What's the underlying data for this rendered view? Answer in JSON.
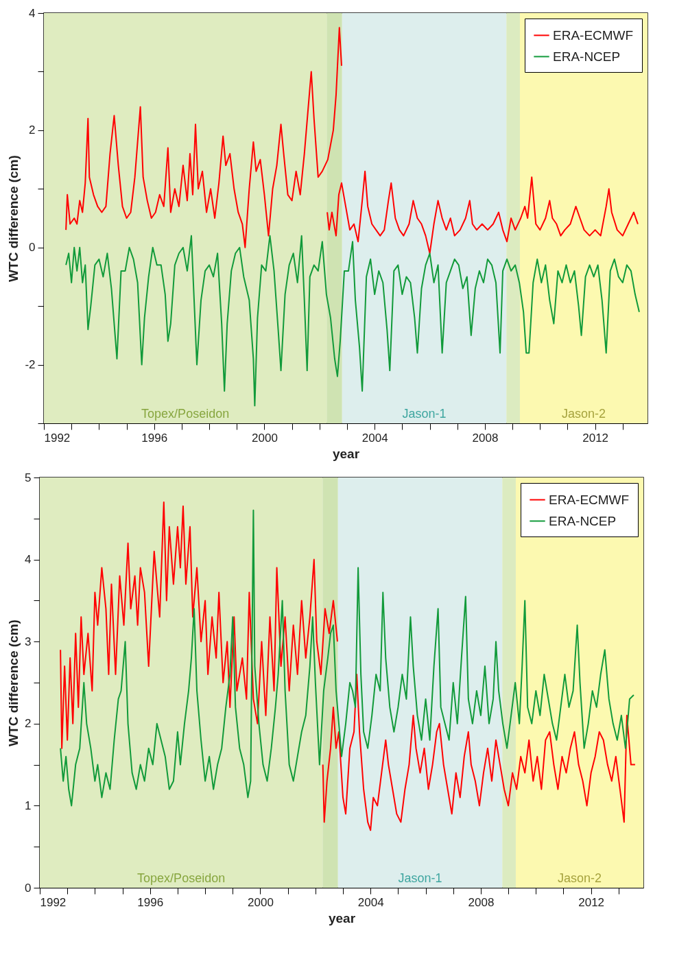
{
  "chart_data": [
    {
      "type": "line",
      "xlabel": "year",
      "ylabel": "WTC difference (cm)",
      "legend": "top right",
      "xlim": [
        1992,
        2013.9
      ],
      "xticks": [
        1992,
        {
          "value": 1993,
          "label": null
        },
        {
          "value": 1994,
          "label": null
        },
        {
          "value": 1995,
          "label": null
        },
        1996,
        {
          "value": 1997,
          "label": null
        },
        {
          "value": 1998,
          "label": null
        },
        {
          "value": 1999,
          "label": null
        },
        2000,
        {
          "value": 2001,
          "label": null
        },
        {
          "value": 2002,
          "label": null
        },
        {
          "value": 2003,
          "label": null
        },
        2004,
        {
          "value": 2005,
          "label": null
        },
        {
          "value": 2006,
          "label": null
        },
        {
          "value": 2007,
          "label": null
        },
        2008,
        {
          "value": 2009,
          "label": null
        },
        {
          "value": 2010,
          "label": null
        },
        {
          "value": 2011,
          "label": null
        },
        2012,
        {
          "value": 2013,
          "label": null
        }
      ],
      "ylim": [
        -3,
        4
      ],
      "yticks": [
        {
          "value": -3,
          "label": null
        },
        -2,
        {
          "value": -1,
          "label": null
        },
        0,
        {
          "value": 1,
          "label": null
        },
        2,
        {
          "value": 3,
          "label": null
        },
        4
      ],
      "bands": [
        {
          "axis": "x",
          "from": 1992,
          "to": 2002.26,
          "label": "Topex/Poseidon",
          "color": "#dfecc0"
        },
        {
          "axis": "x",
          "from": 2002.26,
          "to": 2002.82,
          "color": "#cfe3b2"
        },
        {
          "axis": "x",
          "from": 2002.82,
          "to": 2008.78,
          "label": "Jason-1",
          "color": "#ddeeed"
        },
        {
          "axis": "x",
          "from": 2008.78,
          "to": 2009.27,
          "color": "#dcebc0"
        },
        {
          "axis": "x",
          "from": 2009.27,
          "to": 2013.9,
          "label": "Jason-2",
          "color": "#fcf9b0"
        }
      ],
      "series": [
        {
          "name": "ERA-ECMWF",
          "color": "#ff0000",
          "x": [
            1992.8,
            1992.85,
            1992.95,
            1993.1,
            1993.2,
            1993.3,
            1993.4,
            1993.5,
            1993.6,
            1993.65,
            1993.8,
            1993.95,
            1994.1,
            1994.25,
            1994.4,
            1994.55,
            1994.7,
            1994.85,
            1995.0,
            1995.15,
            1995.3,
            1995.5,
            1995.6,
            1995.75,
            1995.9,
            1996.05,
            1996.2,
            1996.35,
            1996.5,
            1996.6,
            1996.75,
            1996.9,
            1997.05,
            1997.2,
            1997.3,
            1997.4,
            1997.5,
            1997.6,
            1997.75,
            1997.9,
            1998.05,
            1998.2,
            1998.35,
            1998.5,
            1998.6,
            1998.75,
            1998.9,
            1999.05,
            1999.2,
            1999.3,
            1999.45,
            1999.6,
            1999.7,
            1999.85,
            2000.0,
            2000.15,
            2000.3,
            2000.45,
            2000.6,
            2000.7,
            2000.85,
            2001.0,
            2001.15,
            2001.3,
            2001.45,
            2001.7,
            2001.8,
            2001.95,
            2002.1,
            2002.3,
            2002.5,
            2002.6,
            2002.72,
            2002.8
          ],
          "values": [
            0.3,
            0.9,
            0.4,
            0.5,
            0.4,
            0.8,
            0.6,
            1.1,
            2.2,
            1.2,
            0.9,
            0.7,
            0.6,
            0.7,
            1.6,
            2.25,
            1.4,
            0.7,
            0.5,
            0.6,
            1.2,
            2.4,
            1.2,
            0.8,
            0.5,
            0.6,
            0.9,
            0.7,
            1.7,
            0.6,
            1.0,
            0.7,
            1.4,
            0.8,
            1.6,
            0.9,
            2.1,
            1.0,
            1.3,
            0.6,
            1.0,
            0.5,
            1.1,
            1.9,
            1.4,
            1.6,
            1.0,
            0.6,
            0.4,
            0.0,
            1.0,
            1.8,
            1.3,
            1.5,
            0.9,
            0.2,
            1.0,
            1.4,
            2.1,
            1.6,
            0.9,
            0.8,
            1.3,
            0.9,
            1.6,
            3.0,
            2.2,
            1.2,
            1.3,
            1.5,
            2.0,
            2.6,
            3.75,
            3.1
          ]
        },
        {
          "color": "#ff0000",
          "x": [
            2002.28,
            2002.35,
            2002.45,
            2002.6,
            2002.7,
            2002.8,
            2002.95,
            2003.1,
            2003.25,
            2003.4,
            2003.55,
            2003.65,
            2003.75,
            2003.9,
            2004.05,
            2004.2,
            2004.35,
            2004.5,
            2004.6,
            2004.75,
            2004.9,
            2005.05,
            2005.25,
            2005.4,
            2005.55,
            2005.7,
            2005.85,
            2006.0,
            2006.15,
            2006.3,
            2006.45,
            2006.6,
            2006.75,
            2006.9,
            2007.1,
            2007.3,
            2007.45,
            2007.55,
            2007.7,
            2007.9,
            2008.1,
            2008.3,
            2008.5,
            2008.65,
            2008.8,
            2008.95,
            2009.1,
            2009.3,
            2009.45,
            2009.55,
            2009.7,
            2009.85,
            2010.0,
            2010.2,
            2010.35,
            2010.45,
            2010.6,
            2010.75,
            2010.9,
            2011.1,
            2011.3,
            2011.45,
            2011.6,
            2011.8,
            2012.0,
            2012.2,
            2012.4,
            2012.5,
            2012.6,
            2012.8,
            2013.0,
            2013.2,
            2013.4,
            2013.55
          ],
          "values": [
            0.6,
            0.3,
            0.6,
            0.2,
            0.9,
            1.1,
            0.7,
            0.3,
            0.4,
            0.1,
            0.8,
            1.3,
            0.7,
            0.4,
            0.3,
            0.2,
            0.3,
            0.8,
            1.1,
            0.5,
            0.3,
            0.2,
            0.4,
            0.8,
            0.5,
            0.4,
            0.2,
            -0.1,
            0.4,
            0.8,
            0.5,
            0.3,
            0.5,
            0.2,
            0.3,
            0.5,
            0.8,
            0.4,
            0.3,
            0.4,
            0.3,
            0.4,
            0.6,
            0.3,
            0.1,
            0.5,
            0.3,
            0.5,
            0.7,
            0.5,
            1.2,
            0.4,
            0.3,
            0.5,
            0.8,
            0.5,
            0.4,
            0.2,
            0.3,
            0.4,
            0.7,
            0.5,
            0.3,
            0.2,
            0.3,
            0.2,
            0.7,
            1.0,
            0.6,
            0.3,
            0.2,
            0.4,
            0.6,
            0.4
          ]
        },
        {
          "name": "ERA-NCEP",
          "color": "#119a3a",
          "x": [
            1992.8,
            1992.9,
            1993.0,
            1993.1,
            1993.2,
            1993.3,
            1993.4,
            1993.5,
            1993.6,
            1993.7,
            1993.85,
            1994.0,
            1994.15,
            1994.3,
            1994.45,
            1994.6,
            1994.65,
            1994.8,
            1994.95,
            1995.1,
            1995.25,
            1995.4,
            1995.55,
            1995.65,
            1995.8,
            1995.95,
            1996.1,
            1996.25,
            1996.4,
            1996.5,
            1996.6,
            1996.75,
            1996.9,
            1997.05,
            1997.2,
            1997.35,
            1997.45,
            1997.55,
            1997.7,
            1997.85,
            1998.0,
            1998.15,
            1998.3,
            1998.45,
            1998.55,
            1998.65,
            1998.8,
            1998.95,
            1999.1,
            1999.25,
            1999.45,
            1999.6,
            1999.65,
            1999.75,
            1999.9,
            2000.05,
            2000.2,
            2000.35,
            2000.5,
            2000.6,
            2000.75,
            2000.9,
            2001.05,
            2001.2,
            2001.35,
            2001.45,
            2001.55,
            2001.65,
            2001.8,
            2001.95,
            2002.1,
            2002.25,
            2002.4,
            2002.55,
            2002.65,
            2002.75,
            2002.9,
            2003.05,
            2003.2,
            2003.3,
            2003.45,
            2003.55,
            2003.7,
            2003.85,
            2004.0,
            2004.15,
            2004.3,
            2004.45,
            2004.55,
            2004.7,
            2004.85,
            2005.0,
            2005.15,
            2005.3,
            2005.45,
            2005.55,
            2005.7,
            2005.85,
            2006.0,
            2006.15,
            2006.3,
            2006.45,
            2006.6,
            2006.75,
            2006.9,
            2007.05,
            2007.2,
            2007.35,
            2007.5,
            2007.65,
            2007.8,
            2007.95,
            2008.1,
            2008.25,
            2008.4,
            2008.55,
            2008.65,
            2008.8,
            2008.95,
            2009.1,
            2009.25,
            2009.4,
            2009.5,
            2009.6,
            2009.75,
            2009.9,
            2010.05,
            2010.2,
            2010.35,
            2010.5,
            2010.65,
            2010.8,
            2010.95,
            2011.1,
            2011.25,
            2011.4,
            2011.5,
            2011.65,
            2011.8,
            2011.95,
            2012.1,
            2012.25,
            2012.4,
            2012.55,
            2012.7,
            2012.85,
            2013.0,
            2013.15,
            2013.3,
            2013.45,
            2013.6
          ],
          "values": [
            -0.3,
            -0.1,
            -0.6,
            0.0,
            -0.4,
            0.0,
            -0.6,
            -0.3,
            -1.4,
            -1.0,
            -0.3,
            -0.2,
            -0.5,
            -0.1,
            -0.7,
            -1.6,
            -1.9,
            -0.4,
            -0.4,
            0.0,
            -0.2,
            -0.6,
            -2.0,
            -1.2,
            -0.5,
            0.0,
            -0.3,
            -0.3,
            -0.8,
            -1.6,
            -1.3,
            -0.3,
            -0.1,
            0.0,
            -0.4,
            0.2,
            -0.9,
            -2.0,
            -0.9,
            -0.4,
            -0.3,
            -0.5,
            -0.1,
            -1.3,
            -2.45,
            -1.3,
            -0.4,
            -0.1,
            0.0,
            -0.5,
            -0.9,
            -1.9,
            -2.7,
            -1.2,
            -0.3,
            -0.4,
            0.2,
            -0.4,
            -1.4,
            -2.1,
            -0.8,
            -0.3,
            -0.1,
            -0.6,
            0.2,
            -0.9,
            -2.1,
            -0.5,
            -0.3,
            -0.4,
            0.1,
            -0.8,
            -1.2,
            -1.9,
            -2.2,
            -1.6,
            -0.4,
            -0.4,
            0.1,
            -0.9,
            -1.7,
            -2.45,
            -0.5,
            -0.2,
            -0.8,
            -0.4,
            -0.6,
            -1.4,
            -2.1,
            -0.4,
            -0.3,
            -0.8,
            -0.5,
            -0.6,
            -1.2,
            -1.8,
            -0.7,
            -0.3,
            -0.1,
            -0.6,
            -0.3,
            -1.8,
            -0.6,
            -0.4,
            -0.2,
            -0.3,
            -0.7,
            -0.5,
            -1.5,
            -0.7,
            -0.4,
            -0.6,
            -0.2,
            -0.3,
            -0.6,
            -1.8,
            -0.4,
            -0.2,
            -0.4,
            -0.3,
            -0.6,
            -1.1,
            -1.8,
            -1.8,
            -0.6,
            -0.2,
            -0.6,
            -0.3,
            -0.9,
            -1.3,
            -0.4,
            -0.6,
            -0.3,
            -0.6,
            -0.4,
            -1.0,
            -1.5,
            -0.5,
            -0.3,
            -0.5,
            -0.3,
            -0.9,
            -1.8,
            -0.4,
            -0.2,
            -0.5,
            -0.6,
            -0.3,
            -0.4,
            -0.8,
            -1.1
          ]
        }
      ]
    },
    {
      "type": "line",
      "xlabel": "year",
      "ylabel": "WTC difference (cm)",
      "legend": "top right",
      "xlim": [
        1992,
        2013.9
      ],
      "xticks": [
        1992,
        {
          "value": 1993,
          "label": null
        },
        {
          "value": 1994,
          "label": null
        },
        {
          "value": 1995,
          "label": null
        },
        1996,
        {
          "value": 1997,
          "label": null
        },
        {
          "value": 1998,
          "label": null
        },
        {
          "value": 1999,
          "label": null
        },
        2000,
        {
          "value": 2001,
          "label": null
        },
        {
          "value": 2002,
          "label": null
        },
        {
          "value": 2003,
          "label": null
        },
        2004,
        {
          "value": 2005,
          "label": null
        },
        {
          "value": 2006,
          "label": null
        },
        {
          "value": 2007,
          "label": null
        },
        2008,
        {
          "value": 2009,
          "label": null
        },
        {
          "value": 2010,
          "label": null
        },
        {
          "value": 2011,
          "label": null
        },
        2012,
        {
          "value": 2013,
          "label": null
        }
      ],
      "ylim": [
        0,
        5
      ],
      "yticks": [
        0,
        {
          "value": 0.5,
          "label": null
        },
        1,
        {
          "value": 1.5,
          "label": null
        },
        2,
        {
          "value": 2.5,
          "label": null
        },
        3,
        {
          "value": 3.5,
          "label": null
        },
        4,
        {
          "value": 4.5,
          "label": null
        },
        5
      ],
      "bands": [
        {
          "axis": "x",
          "from": 1992,
          "to": 2002.26,
          "label": "Topex/Poseidon",
          "color": "#dfecc0"
        },
        {
          "axis": "x",
          "from": 2002.26,
          "to": 2002.82,
          "color": "#cfe3b2"
        },
        {
          "axis": "x",
          "from": 2002.82,
          "to": 2008.78,
          "label": "Jason-1",
          "color": "#ddeeed"
        },
        {
          "axis": "x",
          "from": 2008.78,
          "to": 2009.27,
          "color": "#dcebc0"
        },
        {
          "axis": "x",
          "from": 2009.27,
          "to": 2013.9,
          "label": "Jason-2",
          "color": "#fcf9b0"
        }
      ],
      "series": [
        {
          "name": "ERA-ECMWF",
          "color": "#ff0000",
          "x": [
            1992.75,
            1992.8,
            1992.9,
            1993.0,
            1993.1,
            1993.2,
            1993.3,
            1993.4,
            1993.5,
            1993.6,
            1993.75,
            1993.9,
            1994.0,
            1994.1,
            1994.25,
            1994.4,
            1994.5,
            1994.6,
            1994.75,
            1994.9,
            1995.05,
            1995.2,
            1995.3,
            1995.45,
            1995.55,
            1995.65,
            1995.8,
            1995.95,
            1996.05,
            1996.15,
            1996.25,
            1996.35,
            1996.5,
            1996.6,
            1996.7,
            1996.85,
            1997.0,
            1997.1,
            1997.2,
            1997.3,
            1997.45,
            1997.55,
            1997.7,
            1997.85,
            1998.0,
            1998.1,
            1998.25,
            1998.4,
            1998.5,
            1998.65,
            1998.8,
            1998.9,
            1999.05,
            1999.15,
            1999.35,
            1999.5,
            1999.6,
            1999.75,
            1999.9,
            2000.05,
            2000.2,
            2000.35,
            2000.5,
            2000.6,
            2000.75,
            2000.9,
            2001.05,
            2001.2,
            2001.35,
            2001.5,
            2001.65,
            2001.8,
            2001.95,
            2002.05,
            2002.2,
            2002.35,
            2002.5,
            2002.65,
            2002.8
          ],
          "values": [
            2.9,
            1.7,
            2.7,
            1.8,
            2.8,
            2.0,
            3.1,
            2.2,
            3.3,
            2.6,
            3.1,
            2.4,
            3.6,
            3.2,
            3.9,
            3.4,
            2.6,
            3.7,
            2.6,
            3.8,
            3.2,
            4.2,
            3.4,
            3.8,
            3.2,
            3.9,
            3.6,
            2.7,
            3.4,
            4.1,
            3.7,
            3.3,
            4.7,
            3.5,
            4.4,
            3.7,
            4.4,
            3.9,
            4.65,
            3.7,
            4.4,
            3.3,
            3.9,
            3.0,
            3.5,
            2.6,
            3.3,
            2.8,
            3.6,
            2.5,
            3.0,
            2.2,
            3.3,
            2.4,
            2.8,
            2.3,
            3.6,
            2.3,
            2.0,
            3.0,
            2.1,
            3.3,
            2.4,
            3.9,
            2.7,
            3.3,
            2.4,
            3.2,
            2.6,
            3.5,
            2.8,
            3.3,
            4.0,
            3.0,
            2.6,
            3.4,
            3.1,
            3.5,
            3.0
          ]
        },
        {
          "color": "#ff0000",
          "x": [
            2002.27,
            2002.32,
            2002.42,
            2002.55,
            2002.65,
            2002.75,
            2002.85,
            2003.0,
            2003.1,
            2003.25,
            2003.4,
            2003.5,
            2003.6,
            2003.75,
            2003.9,
            2004.0,
            2004.1,
            2004.25,
            2004.4,
            2004.55,
            2004.65,
            2004.8,
            2004.95,
            2005.1,
            2005.25,
            2005.4,
            2005.55,
            2005.65,
            2005.8,
            2005.95,
            2006.1,
            2006.25,
            2006.4,
            2006.5,
            2006.65,
            2006.8,
            2006.95,
            2007.1,
            2007.25,
            2007.4,
            2007.55,
            2007.65,
            2007.8,
            2007.95,
            2008.1,
            2008.25,
            2008.4,
            2008.55,
            2008.7,
            2008.85,
            2009.0,
            2009.15,
            2009.3,
            2009.45,
            2009.6,
            2009.75,
            2009.9,
            2010.05,
            2010.2,
            2010.35,
            2010.5,
            2010.65,
            2010.8,
            2010.95,
            2011.1,
            2011.25,
            2011.4,
            2011.55,
            2011.7,
            2011.85,
            2012.0,
            2012.15,
            2012.3,
            2012.45,
            2012.6,
            2012.75,
            2012.9,
            2013.05,
            2013.2,
            2013.3,
            2013.45,
            2013.6
          ],
          "values": [
            1.5,
            0.8,
            1.3,
            1.7,
            2.2,
            1.7,
            1.9,
            1.1,
            0.9,
            1.7,
            1.9,
            2.6,
            1.9,
            1.2,
            0.8,
            0.7,
            1.1,
            1.0,
            1.4,
            1.8,
            1.5,
            1.2,
            0.9,
            0.8,
            1.2,
            1.5,
            2.1,
            1.7,
            1.4,
            1.7,
            1.2,
            1.5,
            1.9,
            2.0,
            1.5,
            1.2,
            0.9,
            1.4,
            1.1,
            1.6,
            1.9,
            1.5,
            1.3,
            1.0,
            1.4,
            1.7,
            1.3,
            1.8,
            1.5,
            1.2,
            1.0,
            1.4,
            1.2,
            1.6,
            1.4,
            1.8,
            1.3,
            1.6,
            1.2,
            1.8,
            1.9,
            1.5,
            1.2,
            1.6,
            1.4,
            1.7,
            1.9,
            1.5,
            1.3,
            1.0,
            1.4,
            1.6,
            1.9,
            1.8,
            1.5,
            1.3,
            1.6,
            1.2,
            0.8,
            2.1,
            1.5,
            1.5
          ]
        },
        {
          "name": "ERA-NCEP",
          "color": "#119a3a",
          "x": [
            1992.75,
            1992.85,
            1992.95,
            1993.05,
            1993.15,
            1993.3,
            1993.45,
            1993.6,
            1993.7,
            1993.85,
            1994.0,
            1994.1,
            1994.25,
            1994.4,
            1994.55,
            1994.7,
            1994.85,
            1994.95,
            1995.1,
            1995.2,
            1995.35,
            1995.5,
            1995.65,
            1995.8,
            1995.95,
            1996.1,
            1996.25,
            1996.4,
            1996.55,
            1996.7,
            1996.85,
            1997.0,
            1997.1,
            1997.25,
            1997.4,
            1997.5,
            1997.6,
            1997.7,
            1997.85,
            1998.0,
            1998.15,
            1998.3,
            1998.45,
            1998.6,
            1998.75,
            1998.9,
            1999.0,
            1999.1,
            1999.25,
            1999.4,
            1999.55,
            1999.65,
            1999.75,
            1999.8,
            1999.95,
            2000.1,
            2000.25,
            2000.4,
            2000.55,
            2000.65,
            2000.8,
            2000.9,
            2001.05,
            2001.2,
            2001.35,
            2001.5,
            2001.65,
            2001.8,
            2001.9,
            2002.0,
            2002.15,
            2002.3,
            2002.45,
            2002.55,
            2002.65,
            2002.75,
            2002.85,
            2002.95,
            2003.1,
            2003.25,
            2003.35,
            2003.45,
            2003.55,
            2003.65,
            2003.75,
            2003.9,
            2004.05,
            2004.2,
            2004.35,
            2004.45,
            2004.55,
            2004.7,
            2004.85,
            2005.0,
            2005.15,
            2005.3,
            2005.45,
            2005.55,
            2005.7,
            2005.85,
            2006.0,
            2006.15,
            2006.3,
            2006.45,
            2006.55,
            2006.7,
            2006.85,
            2007.0,
            2007.15,
            2007.3,
            2007.45,
            2007.55,
            2007.7,
            2007.85,
            2008.0,
            2008.15,
            2008.3,
            2008.45,
            2008.55,
            2008.65,
            2008.8,
            2008.95,
            2009.1,
            2009.25,
            2009.4,
            2009.5,
            2009.6,
            2009.7,
            2009.85,
            2010.0,
            2010.15,
            2010.3,
            2010.45,
            2010.6,
            2010.75,
            2010.9,
            2011.05,
            2011.2,
            2011.35,
            2011.5,
            2011.6,
            2011.75,
            2011.9,
            2012.05,
            2012.2,
            2012.35,
            2012.5,
            2012.65,
            2012.8,
            2012.95,
            2013.1,
            2013.25,
            2013.4,
            2013.55
          ],
          "values": [
            1.7,
            1.3,
            1.6,
            1.2,
            1.0,
            1.5,
            1.7,
            2.5,
            2.0,
            1.7,
            1.3,
            1.5,
            1.1,
            1.4,
            1.2,
            1.8,
            2.3,
            2.4,
            3.0,
            2.0,
            1.4,
            1.2,
            1.5,
            1.3,
            1.7,
            1.5,
            2.0,
            1.8,
            1.6,
            1.2,
            1.3,
            1.9,
            1.5,
            2.0,
            2.4,
            2.8,
            3.4,
            2.4,
            1.8,
            1.3,
            1.6,
            1.2,
            1.5,
            1.7,
            2.2,
            2.6,
            3.3,
            2.2,
            1.7,
            1.5,
            1.1,
            1.3,
            4.6,
            2.7,
            2.0,
            1.5,
            1.3,
            1.7,
            2.2,
            2.6,
            3.5,
            2.4,
            1.5,
            1.3,
            1.6,
            1.9,
            2.1,
            2.7,
            3.3,
            2.5,
            1.5,
            2.4,
            2.8,
            3.1,
            3.2,
            2.4,
            2.0,
            1.6,
            2.0,
            2.5,
            2.4,
            2.2,
            3.9,
            2.6,
            1.9,
            1.7,
            2.1,
            2.6,
            2.4,
            3.6,
            2.8,
            2.2,
            1.9,
            2.2,
            2.6,
            2.3,
            3.3,
            2.7,
            2.1,
            1.8,
            2.3,
            1.8,
            2.7,
            3.4,
            2.2,
            2.0,
            1.8,
            2.5,
            2.0,
            2.8,
            3.55,
            2.3,
            2.0,
            2.4,
            2.1,
            2.7,
            2.0,
            2.3,
            3.0,
            2.4,
            2.0,
            1.7,
            2.1,
            2.5,
            2.0,
            2.7,
            3.5,
            2.2,
            2.0,
            2.4,
            2.1,
            2.6,
            2.3,
            2.0,
            1.8,
            2.2,
            2.6,
            2.2,
            2.4,
            3.2,
            2.5,
            1.7,
            2.0,
            2.4,
            2.2,
            2.6,
            2.9,
            2.3,
            2.0,
            1.8,
            2.1,
            1.7,
            2.3,
            2.35
          ]
        }
      ]
    }
  ]
}
